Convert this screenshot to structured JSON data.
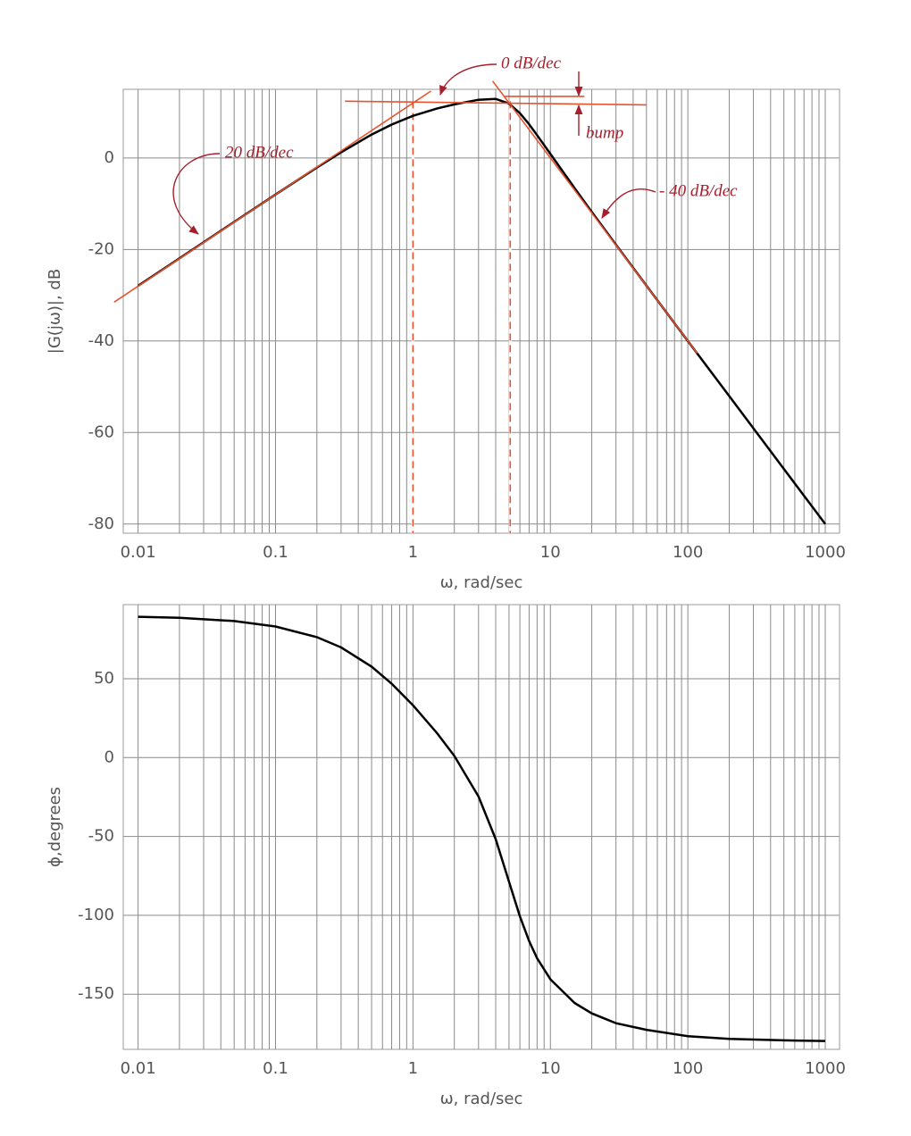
{
  "chart_data": [
    {
      "type": "line",
      "log_x": true,
      "grid": true,
      "x_label": "ω, rad/sec",
      "y_label": "|G(jω)|, dB",
      "xlim": [
        0.0078,
        1270
      ],
      "ylim": [
        -82,
        15
      ],
      "xticks": [
        0.01,
        0.1,
        1,
        10,
        100,
        1000
      ],
      "xminor": [
        0.02,
        0.03,
        0.04,
        0.05,
        0.06,
        0.07,
        0.08,
        0.09,
        0.2,
        0.3,
        0.4,
        0.5,
        0.6,
        0.7,
        0.8,
        0.9,
        2,
        3,
        4,
        5,
        6,
        7,
        8,
        9,
        20,
        30,
        40,
        50,
        60,
        70,
        80,
        90,
        200,
        300,
        400,
        500,
        600,
        700,
        800,
        900
      ],
      "yticks": [
        -80,
        -60,
        -40,
        -20,
        0
      ],
      "x": [
        0.01,
        0.02,
        0.05,
        0.1,
        0.2,
        0.3,
        0.5,
        0.7,
        1,
        1.5,
        2,
        3,
        4,
        5,
        6,
        7,
        8,
        10,
        15,
        20,
        30,
        50,
        100,
        200,
        500,
        1000
      ],
      "series": [
        {
          "color": "#000000",
          "values": [
            -27.96,
            -21.94,
            -13.99,
            -8.0,
            -2.1,
            1.23,
            5.1,
            7.3,
            9.2,
            10.82,
            11.7,
            12.72,
            12.92,
            11.87,
            9.79,
            7.36,
            4.99,
            0.86,
            -6.61,
            -11.79,
            -18.97,
            -27.92,
            -39.99,
            -52.04,
            -67.96,
            -80.0
          ]
        }
      ],
      "asymptotes": [
        {
          "color": "#e8532f",
          "x": [
            0.0067,
            1.35
          ],
          "y": [
            -31.5,
            14.6
          ]
        },
        {
          "color": "#e8532f",
          "x": [
            0.32,
            50
          ],
          "y": [
            12.4,
            11.6
          ]
        },
        {
          "color": "#e8532f",
          "x": [
            3.8,
            117
          ],
          "y": [
            16.8,
            -42.7
          ]
        },
        {
          "color": "#e8532f",
          "x": [
            4.6,
            17.7
          ],
          "y": [
            13.45,
            13.45
          ]
        }
      ],
      "markers": {
        "color": "#e8532f",
        "x": [
          1,
          5.1
        ]
      },
      "annotations": [
        "0 dB/dec",
        "20 dB/dec",
        "bump",
        "- 40 dB/dec"
      ]
    },
    {
      "type": "line",
      "log_x": true,
      "grid": true,
      "x_label": "ω, rad/sec",
      "y_label": "ϕ,degrees",
      "xlim": [
        0.0078,
        1270
      ],
      "ylim": [
        -185,
        97
      ],
      "xticks": [
        0.01,
        0.1,
        1,
        10,
        100,
        1000
      ],
      "xminor": [
        0.02,
        0.03,
        0.04,
        0.05,
        0.06,
        0.07,
        0.08,
        0.09,
        0.2,
        0.3,
        0.4,
        0.5,
        0.6,
        0.7,
        0.8,
        0.9,
        2,
        3,
        4,
        5,
        6,
        7,
        8,
        9,
        20,
        30,
        40,
        50,
        60,
        70,
        80,
        90,
        200,
        300,
        400,
        500,
        600,
        700,
        800,
        900
      ],
      "yticks": [
        -150,
        -100,
        -50,
        0,
        50
      ],
      "x": [
        0.01,
        0.02,
        0.05,
        0.1,
        0.2,
        0.3,
        0.5,
        0.7,
        1,
        1.5,
        2,
        3,
        4,
        5,
        6,
        7,
        8,
        10,
        15,
        20,
        30,
        50,
        100,
        200,
        500,
        1000
      ],
      "series": [
        {
          "color": "#000000",
          "values": [
            89.3,
            88.6,
            86.6,
            83.1,
            76.4,
            69.9,
            57.7,
            46.9,
            33.2,
            15.4,
            1.1,
            -24.7,
            -51.7,
            -78.7,
            -100.7,
            -116.3,
            -127.2,
            -140.6,
            -155.6,
            -162.2,
            -168.4,
            -172.6,
            -176.6,
            -178.3,
            -179.3,
            -179.7
          ]
        }
      ]
    }
  ]
}
